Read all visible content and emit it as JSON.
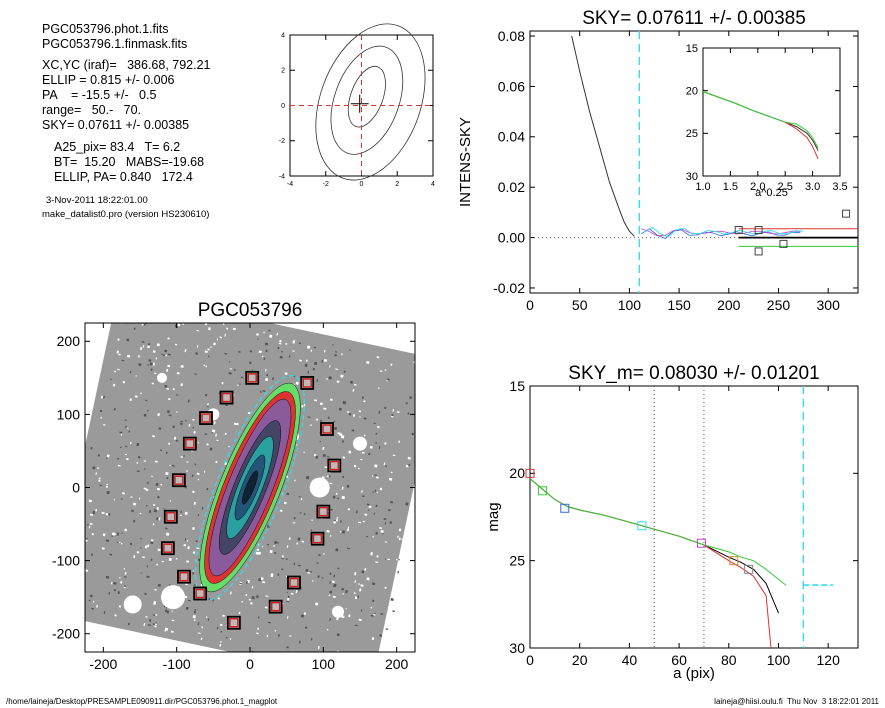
{
  "info": {
    "file1": "PGC053796.phot.1.fits",
    "file2": "PGC053796.1.finmask.fits",
    "xcyc": "XC,YC (iraf)=   386.68, 792.21",
    "ellip": "ELLIP = 0.815 +/- 0.006",
    "pa": "PA    = -15.5 +/-   0.5",
    "range": "range=   50.-   70.",
    "sky": "SKY= 0.07611 +/- 0.00385",
    "a25": "A25_pix= 83.4   T= 6.2",
    "bt": "BT=  15.20   MABS=-19.68",
    "ellip_pa": "ELLIP, PA= 0.840   172.4",
    "date": "3-Nov-2011 18:22:01.00",
    "program": "make_datalist0.pro (version HS230610)"
  },
  "footer": {
    "path": "/home/laineja/Desktop/PRESAMPLE090911.dir/PGC053796.phot.1_magplot",
    "user": "laineja@hiisi.oulu.fi  Thu Nov  3 18:22:01 2011"
  },
  "colors": {
    "axis": "#000000",
    "sky_cut": "#33ddee",
    "red": "#dd3333",
    "green": "#33cc33",
    "blue": "#3366dd",
    "magenta": "#cc44cc"
  },
  "chart_data": [
    {
      "id": "contour",
      "type": "contour",
      "xlim": [
        -4,
        4
      ],
      "ylim": [
        -4,
        4
      ],
      "xticks": [
        "-4",
        "-2",
        "0",
        "2",
        "4"
      ],
      "yticks": [
        "-4",
        "-2",
        "0",
        "2",
        "4"
      ],
      "levels": [
        {
          "cx": 0.3,
          "cy": 0.5,
          "rx": 0.9,
          "ry": 1.8,
          "rot": -20
        },
        {
          "cx": 0.3,
          "cy": 0.3,
          "rx": 1.8,
          "ry": 3.2,
          "rot": -20
        },
        {
          "cx": 0.5,
          "cy": 0.2,
          "rx": 2.8,
          "ry": 4.6,
          "rot": -20
        }
      ]
    },
    {
      "id": "sky_profile",
      "type": "line",
      "title": "SKY= 0.07611 +/- 0.00385",
      "ylabel": "INTENS-SKY",
      "xlim": [
        0,
        330
      ],
      "ylim": [
        -0.022,
        0.082
      ],
      "xticks": [
        "0",
        "50",
        "100",
        "150",
        "200",
        "250",
        "300"
      ],
      "yticks": [
        "-0.02",
        "0.00",
        "0.02",
        "0.04",
        "0.06",
        "0.08"
      ],
      "sky_cut": 110,
      "profile": {
        "x": [
          42,
          50,
          60,
          70,
          80,
          90,
          95,
          100,
          105
        ],
        "y": [
          0.08,
          0.066,
          0.05,
          0.036,
          0.022,
          0.011,
          0.006,
          0.0025,
          0.0005
        ]
      },
      "squares": [
        {
          "x": 210,
          "y": 0.003
        },
        {
          "x": 230,
          "y": 0.003
        },
        {
          "x": 230,
          "y": -0.0055
        },
        {
          "x": 255,
          "y": -0.0025
        },
        {
          "x": 318,
          "y": 0.0095
        }
      ],
      "levels": [
        {
          "x": [
            210,
            330
          ],
          "y": [
            0.0,
            0.0
          ],
          "color": "#000000"
        },
        {
          "x": [
            210,
            330
          ],
          "y": [
            0.0035,
            0.0035
          ],
          "color": "#dd3333"
        },
        {
          "x": [
            210,
            330
          ],
          "y": [
            -0.0035,
            -0.0035
          ],
          "color": "#33cc33"
        }
      ]
    },
    {
      "id": "sky_inset",
      "type": "line",
      "xlabel": "a^0.25",
      "xlim": [
        1.0,
        3.5
      ],
      "ylim": [
        30,
        15
      ],
      "xticks": [
        "1.0",
        "1.5",
        "2.0",
        "2.5",
        "3.0",
        "3.5"
      ],
      "yticks": [
        "15",
        "20",
        "25",
        "30"
      ],
      "x": [
        1.0,
        1.3,
        1.6,
        1.9,
        2.2,
        2.5,
        2.7,
        2.9,
        3.0,
        3.1
      ],
      "y": [
        20.1,
        20.8,
        21.5,
        22.3,
        23.0,
        23.7,
        24.2,
        25.0,
        25.8,
        27.0
      ]
    },
    {
      "id": "galaxy",
      "type": "image",
      "title": "PGC053796",
      "xlim": [
        -225,
        225
      ],
      "ylim": [
        -225,
        225
      ],
      "xticks": [
        "-200",
        "-100",
        "0",
        "100",
        "200"
      ],
      "yticks": [
        "-200",
        "-100",
        "0",
        "100",
        "200"
      ],
      "masks": [
        [
          3,
          150
        ],
        [
          78,
          143
        ],
        [
          -32,
          123
        ],
        [
          -60,
          95
        ],
        [
          105,
          80
        ],
        [
          -82,
          60
        ],
        [
          115,
          30
        ],
        [
          -97,
          10
        ],
        [
          100,
          -33
        ],
        [
          -108,
          -40
        ],
        [
          92,
          -70
        ],
        [
          -112,
          -83
        ],
        [
          -90,
          -122
        ],
        [
          60,
          -130
        ],
        [
          -68,
          -145
        ],
        [
          35,
          -163
        ],
        [
          -22,
          -185
        ]
      ]
    },
    {
      "id": "mag_profile",
      "type": "line",
      "title": "SKY_m=  0.08030 +/- 0.01201",
      "xlabel": "a (pix)",
      "ylabel": "mag",
      "xlim": [
        0,
        132
      ],
      "ylim": [
        30,
        15
      ],
      "xticks": [
        "0",
        "20",
        "40",
        "60",
        "80",
        "100",
        "120"
      ],
      "yticks": [
        "15",
        "20",
        "25",
        "30"
      ],
      "range_lines": [
        50,
        70
      ],
      "sky_cut": 110,
      "series": [
        {
          "color": "#000000",
          "x": [
            0,
            5,
            10,
            15,
            20,
            30,
            40,
            50,
            60,
            70,
            80,
            85,
            90,
            95,
            100
          ],
          "y": [
            20.3,
            20.9,
            21.5,
            21.9,
            22.1,
            22.4,
            22.8,
            23.2,
            23.6,
            24.1,
            24.8,
            25.1,
            25.5,
            26.3,
            28.0
          ]
        },
        {
          "color": "#dd3333",
          "x": [
            0,
            5,
            10,
            15,
            20,
            30,
            40,
            50,
            60,
            70,
            80,
            85,
            90,
            95,
            97
          ],
          "y": [
            20.3,
            20.9,
            21.5,
            21.9,
            22.1,
            22.4,
            22.8,
            23.2,
            23.6,
            24.1,
            25.0,
            25.4,
            25.9,
            27.0,
            30.0
          ]
        },
        {
          "color": "#33cc33",
          "x": [
            0,
            5,
            10,
            15,
            20,
            30,
            40,
            50,
            60,
            70,
            80,
            85,
            90,
            95,
            103
          ],
          "y": [
            20.3,
            20.9,
            21.5,
            21.9,
            22.1,
            22.4,
            22.8,
            23.2,
            23.6,
            24.1,
            24.5,
            24.8,
            25.0,
            25.5,
            26.4
          ]
        }
      ],
      "squares": [
        {
          "x": 0,
          "y": 20.0,
          "color": "#dd3333"
        },
        {
          "x": 5,
          "y": 21.0,
          "color": "#33cc33"
        },
        {
          "x": 14,
          "y": 22.0,
          "color": "#3366dd"
        },
        {
          "x": 45,
          "y": 23.0,
          "color": "#33ddee"
        },
        {
          "x": 69,
          "y": 24.0,
          "color": "#cc44cc"
        },
        {
          "x": 82,
          "y": 25.0,
          "color": "#dd8833"
        },
        {
          "x": 88,
          "y": 25.5,
          "color": "#888888"
        }
      ],
      "sky_level": {
        "x": [
          110,
          122
        ],
        "y": [
          26.4,
          26.4
        ]
      }
    }
  ]
}
